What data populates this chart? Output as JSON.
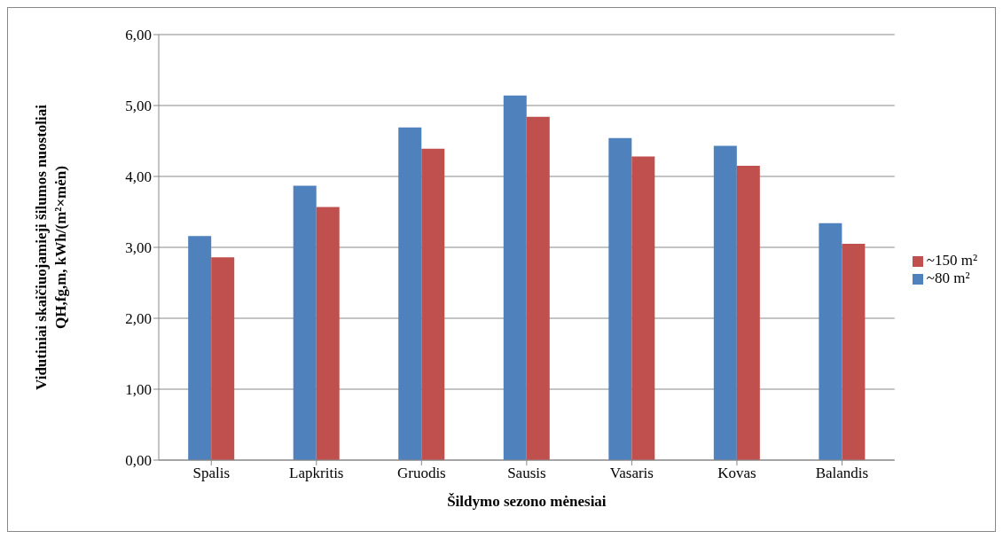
{
  "chart_data": {
    "type": "bar",
    "xlabel": "Šildymo sezono mėnesiai",
    "ylabel": "Vidutiniai skaičiuojamieji šilumos nuostoliai QH,fg,m, kWh/(m²×mėn)",
    "categories": [
      "Spalis",
      "Lapkritis",
      "Gruodis",
      "Sausis",
      "Vasaris",
      "Kovas",
      "Balandis"
    ],
    "series": [
      {
        "name": "~80 m²",
        "color": "#4f81bd",
        "values": [
          3.16,
          3.87,
          4.69,
          5.14,
          4.54,
          4.43,
          3.34
        ]
      },
      {
        "name": "~150 m²",
        "color": "#c0504d",
        "values": [
          2.86,
          3.57,
          4.39,
          4.84,
          4.28,
          4.15,
          3.05
        ]
      }
    ],
    "ylim": [
      0,
      6
    ],
    "yticks": [
      {
        "value": 0,
        "label": "0,00"
      },
      {
        "value": 1,
        "label": "1,00"
      },
      {
        "value": 2,
        "label": "2,00"
      },
      {
        "value": 3,
        "label": "3,00"
      },
      {
        "value": 4,
        "label": "4,00"
      },
      {
        "value": 5,
        "label": "5,00"
      },
      {
        "value": 6,
        "label": "6,00"
      }
    ],
    "grid": "y",
    "legend": "right"
  }
}
